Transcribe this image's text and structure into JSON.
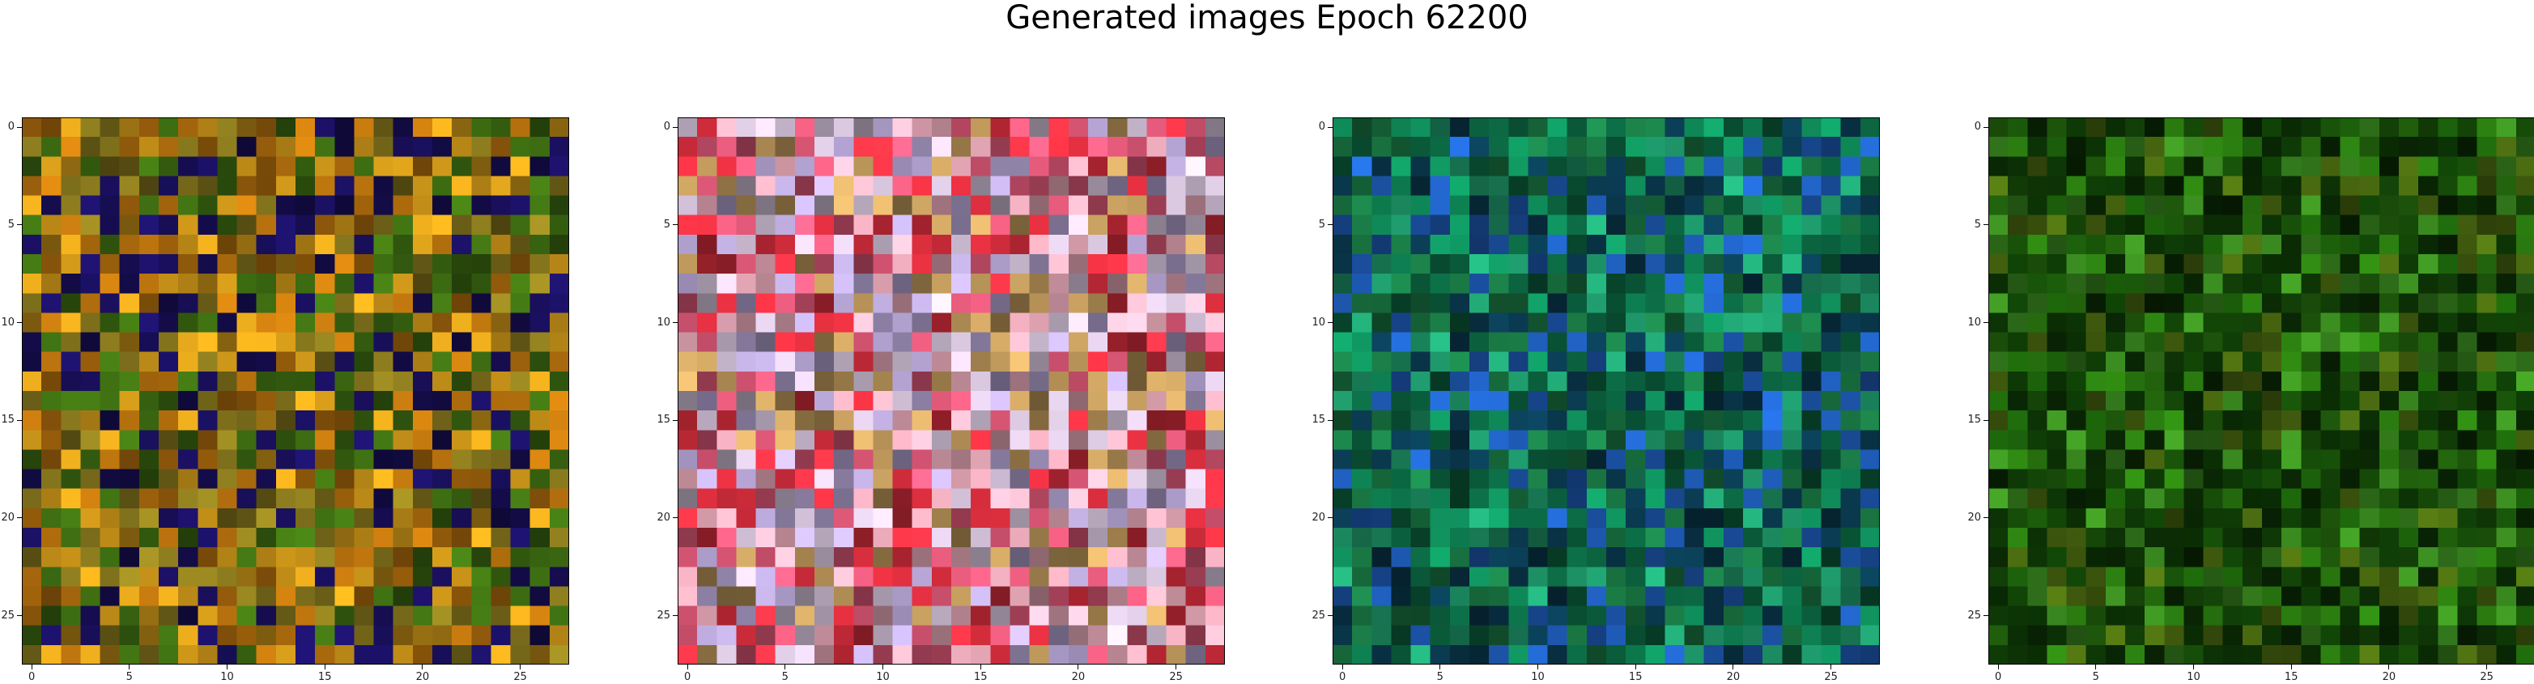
{
  "figure": {
    "title": "Generated images Epoch 62200"
  },
  "chart_data": [
    {
      "type": "heatmap",
      "title": "",
      "grid_size": 28,
      "xlim": [
        0,
        27
      ],
      "ylim": [
        27,
        0
      ],
      "xticks": [
        "0",
        "5",
        "10",
        "15",
        "20",
        "25"
      ],
      "yticks": [
        "0",
        "5",
        "10",
        "15",
        "20",
        "25"
      ],
      "dominant_colors": [
        "#8a7a1e",
        "#b8720e",
        "#3e6e12",
        "#d29a1a",
        "#1a1060"
      ],
      "seed": 11
    },
    {
      "type": "heatmap",
      "title": "",
      "grid_size": 28,
      "xlim": [
        0,
        27
      ],
      "ylim": [
        27,
        0
      ],
      "xticks": [
        "0",
        "5",
        "10",
        "15",
        "20",
        "25"
      ],
      "yticks": [
        "0",
        "5",
        "10",
        "15",
        "20",
        "25"
      ],
      "dominant_colors": [
        "#e35a7a",
        "#d8c6de",
        "#b9a8d8",
        "#e23040",
        "#f2b0c0",
        "#c8a060"
      ],
      "seed": 23
    },
    {
      "type": "heatmap",
      "title": "",
      "grid_size": 28,
      "xlim": [
        0,
        27
      ],
      "ylim": [
        27,
        0
      ],
      "xticks": [
        "0",
        "5",
        "10",
        "15",
        "20",
        "25"
      ],
      "yticks": [
        "0",
        "5",
        "10",
        "15",
        "20",
        "25"
      ],
      "dominant_colors": [
        "#1a7a45",
        "#0f8c5a",
        "#0a5a3a",
        "#20a070",
        "#0a3a50",
        "#2060c0"
      ],
      "seed": 37
    },
    {
      "type": "heatmap",
      "title": "",
      "grid_size": 28,
      "xlim": [
        0,
        27
      ],
      "ylim": [
        27,
        0
      ],
      "xticks": [
        "0",
        "5",
        "10",
        "15",
        "20",
        "25"
      ],
      "yticks": [
        "0",
        "5",
        "10",
        "15",
        "20",
        "25"
      ],
      "dominant_colors": [
        "#1a5a0a",
        "#2a7a10",
        "#0e3a06",
        "#3a8a20",
        "#0a2a04",
        "#4a6a10"
      ],
      "seed": 53
    }
  ]
}
